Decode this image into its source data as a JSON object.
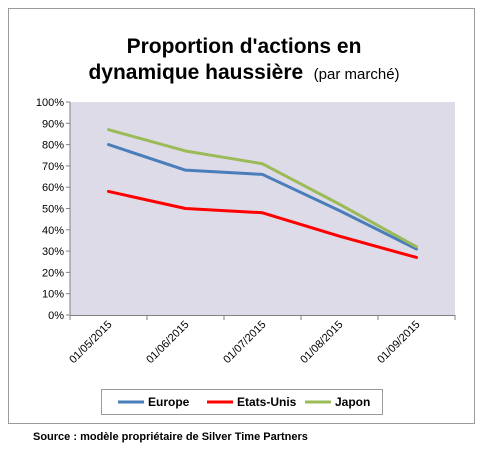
{
  "chart_data": {
    "type": "line",
    "title": "Proportion d'actions en dynamique haussière",
    "title_line1": "Proportion d'actions en",
    "title_line2": "dynamique haussière",
    "subtitle": "(par marché)",
    "x": [
      "01/05/2015",
      "01/06/2015",
      "01/07/2015",
      "01/08/2015",
      "01/09/2015"
    ],
    "y_ticks": [
      "0%",
      "10%",
      "20%",
      "30%",
      "40%",
      "50%",
      "60%",
      "70%",
      "80%",
      "90%",
      "100%"
    ],
    "ylim": [
      0,
      100
    ],
    "grid": false,
    "legend_position": "bottom",
    "plot_background": "#dedbe9",
    "series": [
      {
        "name": "Europe",
        "color": "#4a7ebb",
        "values": [
          80,
          68,
          66,
          49,
          31
        ]
      },
      {
        "name": "Etats-Unis",
        "color": "#ff0000",
        "values": [
          58,
          50,
          48,
          37,
          27
        ]
      },
      {
        "name": "Japon",
        "color": "#9bbb59",
        "values": [
          87,
          77,
          71,
          52,
          32
        ]
      }
    ]
  },
  "source": "Source : modèle propriétaire de Silver Time Partners"
}
